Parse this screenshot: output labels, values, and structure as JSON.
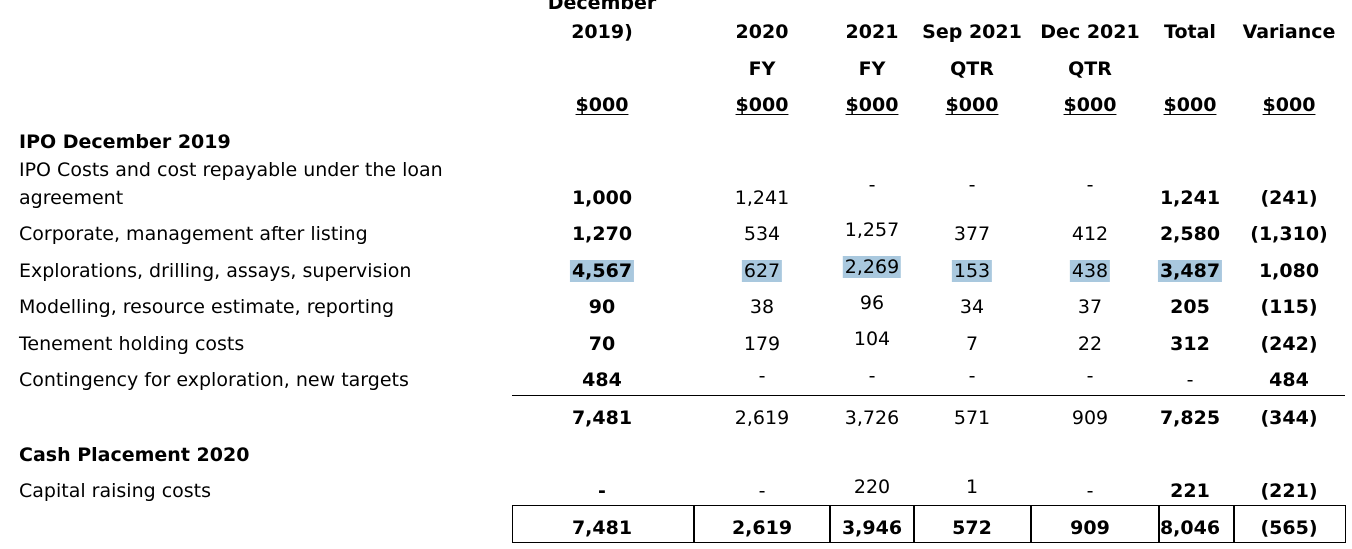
{
  "header": {
    "columns": [
      {
        "lines": [
          "December",
          "2019)",
          "",
          "$000"
        ]
      },
      {
        "lines": [
          "2020",
          "FY",
          "$000"
        ]
      },
      {
        "lines": [
          "2021",
          "FY",
          "$000"
        ]
      },
      {
        "lines": [
          "Sep 2021",
          "QTR",
          "$000"
        ]
      },
      {
        "lines": [
          "Dec 2021",
          "QTR",
          "$000"
        ]
      },
      {
        "lines": [
          "Total",
          "$000"
        ]
      },
      {
        "lines": [
          "Variance",
          "$000"
        ]
      }
    ]
  },
  "sections": [
    {
      "title": "IPO December 2019",
      "rows": [
        {
          "label": [
            "IPO Costs and cost repayable under the loan",
            "agreement"
          ],
          "values": [
            "1,000",
            "1,241",
            "-",
            "-",
            "-",
            "1,241",
            "(241)"
          ]
        },
        {
          "label": [
            "Corporate, management after listing"
          ],
          "values": [
            "1,270",
            "534",
            "1,257",
            "377",
            "412",
            "2,580",
            "(1,310)"
          ]
        },
        {
          "label": [
            "Explorations, drilling, assays, supervision"
          ],
          "values": [
            "4,567",
            "627",
            "2,269",
            "153",
            "438",
            "3,487",
            "1,080"
          ],
          "highlighted": true
        },
        {
          "label": [
            "Modelling, resource estimate, reporting"
          ],
          "values": [
            "90",
            "38",
            "96",
            "34",
            "37",
            "205",
            "(115)"
          ]
        },
        {
          "label": [
            "Tenement holding costs"
          ],
          "values": [
            "70",
            "179",
            "104",
            "7",
            "22",
            "312",
            "(242)"
          ]
        },
        {
          "label": [
            "Contingency for exploration, new targets"
          ],
          "values": [
            "484",
            "-",
            "-",
            "-",
            "-",
            "-",
            "484"
          ]
        }
      ],
      "subtotal": [
        "7,481",
        "2,619",
        "3,726",
        "571",
        "909",
        "7,825",
        "(344)"
      ]
    },
    {
      "title": "Cash Placement 2020",
      "rows": [
        {
          "label": [
            "Capital raising costs"
          ],
          "values": [
            "-",
            "-",
            "220",
            "1",
            "-",
            "221",
            "(221)"
          ]
        }
      ]
    }
  ],
  "grand_total": [
    "7,481",
    "2,619",
    "3,946",
    "572",
    "909",
    "8,046",
    "(565)"
  ]
}
